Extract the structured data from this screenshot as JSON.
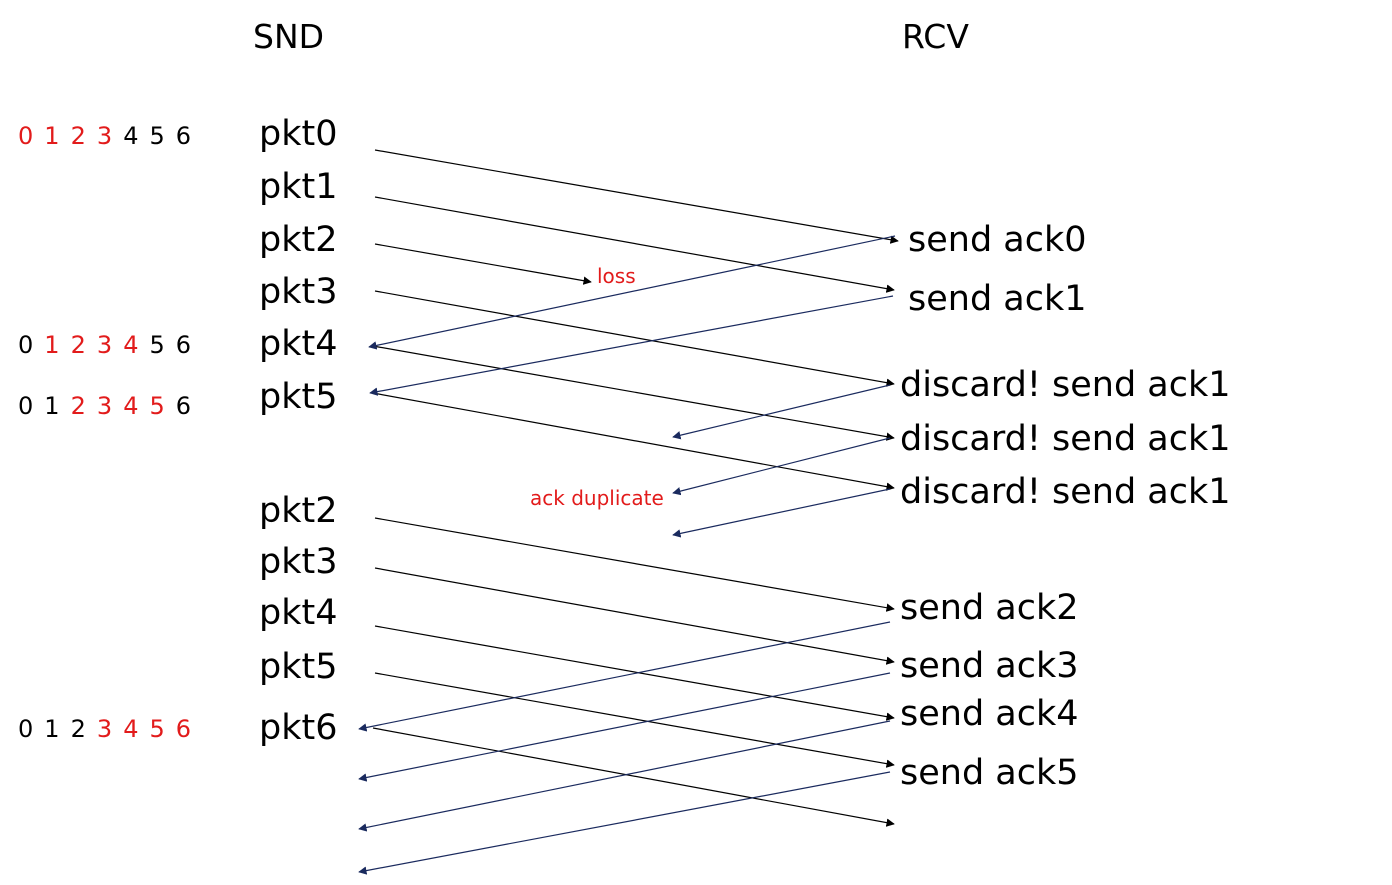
{
  "headers": {
    "sender": "SND",
    "receiver": "RCV"
  },
  "colors": {
    "highlight": "#e21b1b",
    "normal": "#000000",
    "packet_arrow": "#000000",
    "ack_arrow": "#1a2a5e"
  },
  "windows": [
    {
      "digits": [
        "0",
        "1",
        "2",
        "3",
        "4",
        "5",
        "6"
      ],
      "highlighted": [
        0,
        1,
        2,
        3
      ]
    },
    {
      "digits": [
        "0",
        "1",
        "2",
        "3",
        "4",
        "5",
        "6"
      ],
      "highlighted": [
        1,
        2,
        3,
        4
      ]
    },
    {
      "digits": [
        "0",
        "1",
        "2",
        "3",
        "4",
        "5",
        "6"
      ],
      "highlighted": [
        2,
        3,
        4,
        5
      ]
    },
    {
      "digits": [
        "0",
        "1",
        "2",
        "3",
        "4",
        "5",
        "6"
      ],
      "highlighted": [
        3,
        4,
        5,
        6
      ]
    }
  ],
  "sender_packets": [
    "pkt0",
    "pkt1",
    "pkt2",
    "pkt3",
    "pkt4",
    "pkt5",
    "pkt2",
    "pkt3",
    "pkt4",
    "pkt5",
    "pkt6"
  ],
  "receiver_events": [
    "send ack0",
    "send ack1",
    "discard! send ack1",
    "discard! send ack1",
    "discard! send ack1",
    "send ack2",
    "send ack3",
    "send ack4",
    "send ack5"
  ],
  "annotations": {
    "loss": "loss",
    "ack_duplicate": "ack duplicate"
  }
}
